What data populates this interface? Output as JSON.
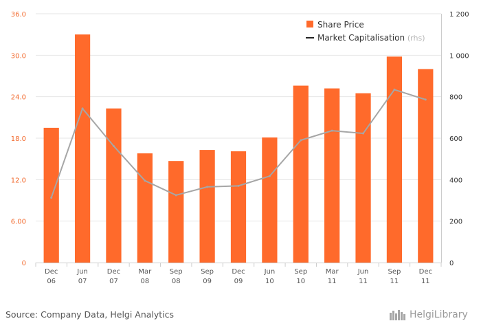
{
  "chart_data": {
    "type": "bar",
    "categories": [
      [
        "Dec",
        "06"
      ],
      [
        "Jun",
        "07"
      ],
      [
        "Dec",
        "07"
      ],
      [
        "Mar",
        "08"
      ],
      [
        "Sep",
        "08"
      ],
      [
        "Sep",
        "09"
      ],
      [
        "Dec",
        "09"
      ],
      [
        "Jun",
        "10"
      ],
      [
        "Sep",
        "10"
      ],
      [
        "Mar",
        "11"
      ],
      [
        "Jun",
        "11"
      ],
      [
        "Sep",
        "11"
      ],
      [
        "Dec",
        "11"
      ]
    ],
    "series": [
      {
        "name": "Share Price",
        "type": "bar",
        "axis": "left",
        "color": "#ff6a2b",
        "values": [
          19.5,
          33.0,
          22.3,
          15.8,
          14.7,
          16.3,
          16.1,
          18.1,
          25.6,
          25.2,
          24.5,
          29.8,
          28.0
        ]
      },
      {
        "name": "Market Capitalisation",
        "name_suffix": "(rhs)",
        "type": "line",
        "axis": "right",
        "color": "#a6a6a6",
        "values": [
          313,
          743,
          562,
          395,
          325,
          365,
          370,
          417,
          590,
          636,
          623,
          834,
          786
        ]
      }
    ],
    "y_left": {
      "min": 0,
      "max": 36,
      "ticks": [
        "0",
        "6.00",
        "12.0",
        "18.0",
        "24.0",
        "30.0",
        "36.0"
      ]
    },
    "y_right": {
      "min": 0,
      "max": 1200,
      "ticks": [
        "0",
        "200",
        "400",
        "600",
        "800",
        "1 000",
        "1 200"
      ]
    },
    "grid": true,
    "legend_position": "top-right"
  },
  "footer": {
    "source": "Source: Company Data, Helgi Analytics",
    "brand": "HelgiLibrary"
  }
}
